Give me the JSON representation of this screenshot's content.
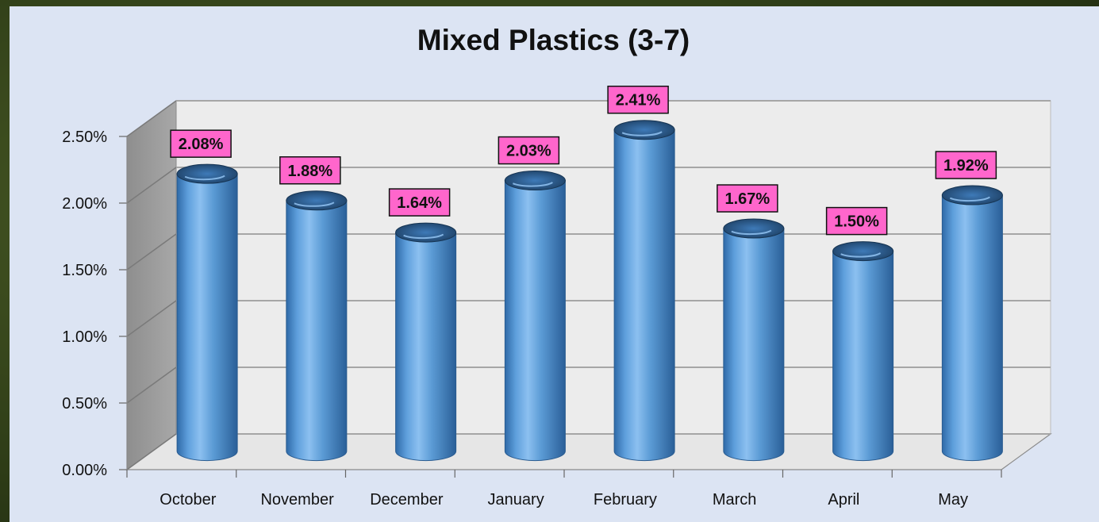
{
  "colors": {
    "background_outer": "#2f3d1a",
    "panel": "#dce4f3",
    "back_wall": "#ececec",
    "side_wall": "#9a9a9a",
    "floor": "#e6e6e6",
    "bar": "#5b9bd5",
    "label_box": "#ff66cc",
    "gridline": "#a6a6a6"
  },
  "chart_data": {
    "type": "bar",
    "title": "Mixed Plastics (3-7)",
    "xlabel": "",
    "ylabel": "",
    "style": "3d-cylinder",
    "grid": true,
    "legend": "none",
    "categories": [
      "October",
      "November",
      "December",
      "January",
      "February",
      "March",
      "April",
      "May"
    ],
    "values": [
      2.08,
      1.88,
      1.64,
      2.03,
      2.41,
      1.67,
      1.5,
      1.92
    ],
    "value_labels": [
      "2.08%",
      "1.88%",
      "1.64%",
      "2.03%",
      "2.41%",
      "1.67%",
      "1.50%",
      "1.92%"
    ],
    "ylim": [
      0,
      2.5
    ],
    "yticks": [
      0,
      0.5,
      1.0,
      1.5,
      2.0,
      2.5
    ],
    "ytick_labels": [
      "0.00%",
      "0.50%",
      "1.00%",
      "1.50%",
      "2.00%",
      "2.50%"
    ]
  }
}
